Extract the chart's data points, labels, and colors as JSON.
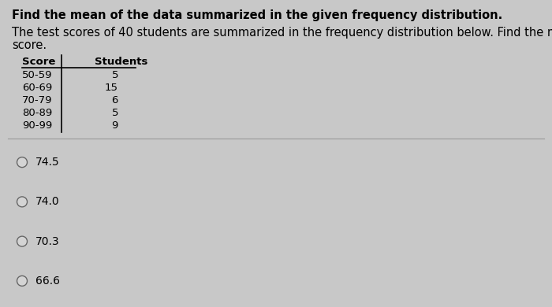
{
  "title": "Find the mean of the data summarized in the given frequency distribution.",
  "body_line1": "The test scores of 40 students are summarized in the frequency distribution below. Find the mean",
  "body_line2": "score.",
  "table_header": [
    "Score",
    "Students"
  ],
  "table_rows": [
    [
      "50-59",
      "5"
    ],
    [
      "60-69",
      "15"
    ],
    [
      "70-79",
      "6"
    ],
    [
      "80-89",
      "5"
    ],
    [
      "90-99",
      "9"
    ]
  ],
  "options": [
    "74.5",
    "74.0",
    "70.3",
    "66.6"
  ],
  "bg_color": "#c8c8c8",
  "title_fontsize": 10.5,
  "body_fontsize": 10.5,
  "table_fontsize": 9.5,
  "option_fontsize": 10.0
}
